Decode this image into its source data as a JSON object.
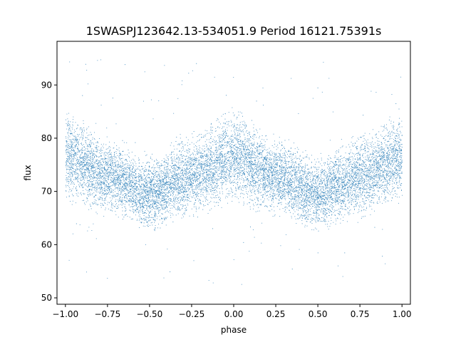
{
  "chart_data": {
    "type": "scatter",
    "title": "1SWASPJ123642.13-534051.9 Period 16121.75391s",
    "xlabel": "phase",
    "ylabel": "flux",
    "xlim": [
      -1.05,
      1.05
    ],
    "ylim": [
      48.8,
      98.2
    ],
    "xticks": [
      -1.0,
      -0.75,
      -0.5,
      -0.25,
      0.0,
      0.25,
      0.5,
      0.75,
      1.0
    ],
    "xtick_labels": [
      "−1.00",
      "−0.75",
      "−0.50",
      "−0.25",
      "0.00",
      "0.25",
      "0.50",
      "0.75",
      "1.00"
    ],
    "yticks": [
      50,
      60,
      70,
      80,
      90
    ],
    "ytick_labels": [
      "50",
      "60",
      "70",
      "80",
      "90"
    ],
    "grid": false,
    "point_color": "#1f77b4",
    "series": [
      {
        "phase_range": [
          -1.0,
          1.0
        ],
        "approx_point_count": 20000,
        "envelope_phase": [
          -1.0,
          -0.75,
          -0.5,
          -0.25,
          0.0,
          0.25,
          0.5,
          0.75,
          1.0
        ],
        "envelope_center_flux": [
          76.5,
          73.0,
          69.5,
          73.0,
          76.5,
          73.0,
          69.5,
          73.0,
          76.5
        ],
        "envelope_upper_flux": [
          83.5,
          79.0,
          76.0,
          80.0,
          84.0,
          79.0,
          76.0,
          80.0,
          83.5
        ],
        "envelope_lower_flux": [
          69.0,
          66.5,
          64.0,
          66.5,
          69.0,
          66.5,
          64.0,
          66.5,
          69.0
        ]
      }
    ]
  }
}
